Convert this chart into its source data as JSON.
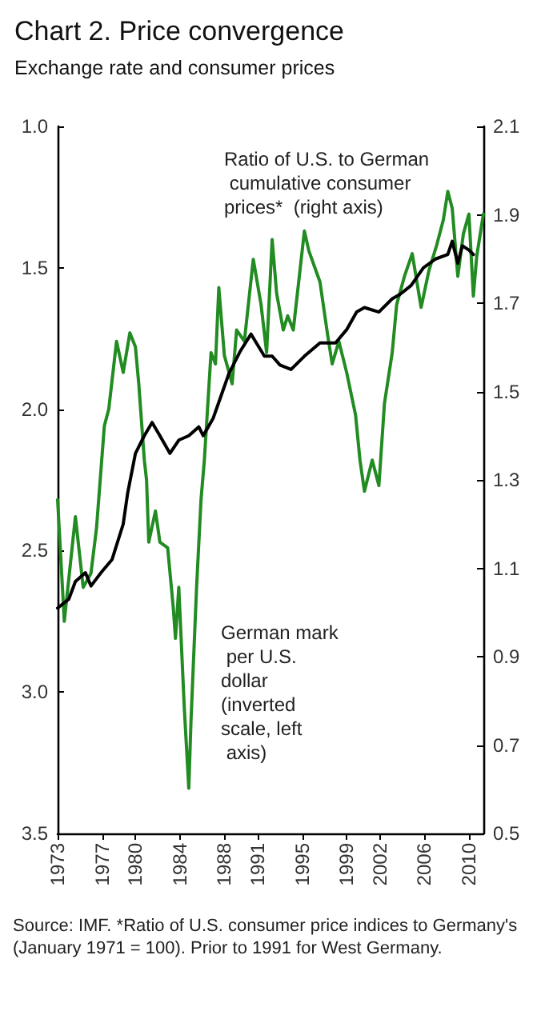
{
  "chart_data": {
    "type": "line",
    "title": "Chart 2. Price convergence",
    "subtitle": "Exchange rate and consumer prices",
    "annotations": [
      "Ratio of U.S. to German cumulative consumer prices*  (right axis)",
      "German mark per U.S. dollar (inverted scale, left axis)",
      "Source: IMF. *Ratio of U.S. consumer price indices to Germany's (January 1971 = 100). Prior to 1991 for West Germany."
    ],
    "xlim": [
      1973,
      2011.3
    ],
    "xticks": [
      {
        "value": 1973,
        "label": "1973"
      },
      {
        "value": 1977,
        "label": "1977"
      },
      {
        "value": 1980,
        "label": "1980"
      },
      {
        "value": 1984,
        "label": "1984"
      },
      {
        "value": 1988,
        "label": "1988"
      },
      {
        "value": 1991,
        "label": "1991"
      },
      {
        "value": 1995,
        "label": "1995"
      },
      {
        "value": 1999,
        "label": "1999"
      },
      {
        "value": 2002,
        "label": "2002"
      },
      {
        "value": 2006,
        "label": "2006"
      },
      {
        "value": 2010,
        "label": "2010"
      }
    ],
    "ylim": [
      3.5,
      1.0
    ],
    "yticks": [
      {
        "value": 1,
        "label": "1.0"
      },
      1.5,
      {
        "value": 2,
        "label": "2.0"
      },
      2.5,
      {
        "value": 3,
        "label": "3.0"
      },
      3.5
    ],
    "y2lim": [
      0.5,
      2.1
    ],
    "y2ticks": [
      0.5,
      0.7,
      0.9,
      1.1,
      1.3,
      1.5,
      1.7,
      1.9,
      2.1
    ],
    "grid": false,
    "marker": "none",
    "line_style": "solid",
    "series": [
      {
        "color": "#228b22",
        "x": [
          1973.0,
          1973.6,
          1974.6,
          1975.3,
          1976.0,
          1976.5,
          1977.2,
          1977.6,
          1978.3,
          1978.9,
          1979.5,
          1980.0,
          1980.3,
          1980.8,
          1981.0,
          1981.2,
          1981.8,
          1982.2,
          1982.9,
          1983.4,
          1983.6,
          1983.9,
          1984.4,
          1984.8,
          1985.0,
          1985.5,
          1985.9,
          1986.2,
          1986.8,
          1987.2,
          1987.5,
          1988.0,
          1988.7,
          1989.1,
          1989.8,
          1990.6,
          1991.3,
          1991.8,
          1992.3,
          1992.7,
          1993.3,
          1993.7,
          1994.2,
          1995.2,
          1995.6,
          1996.6,
          1997.3,
          1997.7,
          1998.3,
          1999.0,
          1999.8,
          2000.2,
          2000.6,
          2001.3,
          2001.9,
          2002.4,
          2003.1,
          2003.5,
          2004.2,
          2004.9,
          2005.7,
          2006.4,
          2007.1,
          2007.7,
          2008.1,
          2008.5,
          2009.0,
          2009.5,
          2010.0,
          2010.4,
          2010.7,
          2011.3
        ],
        "values": [
          2.32,
          2.75,
          2.38,
          2.63,
          2.58,
          2.42,
          2.06,
          2.0,
          1.76,
          1.87,
          1.73,
          1.78,
          1.91,
          2.18,
          2.25,
          2.47,
          2.36,
          2.47,
          2.49,
          2.7,
          2.81,
          2.63,
          3.06,
          3.34,
          3.1,
          2.63,
          2.32,
          2.18,
          1.8,
          1.84,
          1.57,
          1.81,
          1.91,
          1.72,
          1.76,
          1.47,
          1.63,
          1.8,
          1.4,
          1.59,
          1.72,
          1.67,
          1.72,
          1.37,
          1.44,
          1.55,
          1.74,
          1.84,
          1.76,
          1.87,
          2.02,
          2.18,
          2.29,
          2.18,
          2.27,
          1.98,
          1.8,
          1.63,
          1.53,
          1.45,
          1.64,
          1.51,
          1.42,
          1.33,
          1.23,
          1.29,
          1.53,
          1.38,
          1.31,
          1.6,
          1.46,
          1.31
        ]
      },
      {
        "color": "#000000",
        "axis": "y2",
        "x": [
          1973.0,
          1974.0,
          1974.6,
          1975.5,
          1976.0,
          1976.9,
          1977.9,
          1978.9,
          1979.3,
          1980.0,
          1980.8,
          1981.5,
          1982.2,
          1983.1,
          1983.9,
          1984.8,
          1985.7,
          1986.1,
          1987.0,
          1987.7,
          1988.4,
          1989.4,
          1990.4,
          1991.6,
          1992.3,
          1993.0,
          1994.0,
          1995.2,
          1996.6,
          1998.0,
          1999.0,
          1999.9,
          2000.6,
          2001.9,
          2003.1,
          2003.8,
          2004.8,
          2005.9,
          2007.0,
          2008.1,
          2008.5,
          2009.0,
          2009.4,
          2010.0,
          2010.4
        ],
        "values": [
          1.01,
          1.03,
          1.07,
          1.09,
          1.06,
          1.09,
          1.12,
          1.2,
          1.27,
          1.36,
          1.4,
          1.43,
          1.4,
          1.36,
          1.39,
          1.4,
          1.42,
          1.4,
          1.44,
          1.49,
          1.54,
          1.59,
          1.63,
          1.58,
          1.58,
          1.56,
          1.55,
          1.58,
          1.61,
          1.61,
          1.64,
          1.68,
          1.69,
          1.68,
          1.71,
          1.72,
          1.74,
          1.78,
          1.8,
          1.81,
          1.84,
          1.79,
          1.83,
          1.82,
          1.81
        ]
      }
    ]
  }
}
